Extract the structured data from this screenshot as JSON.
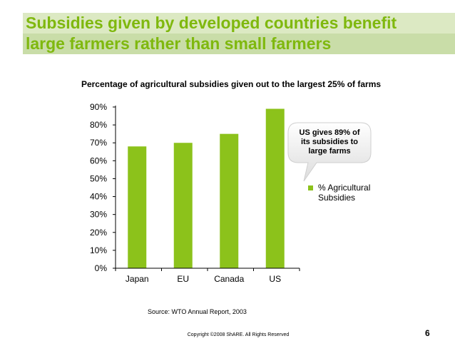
{
  "slide": {
    "title_line1": "Subsidies given by developed countries benefit",
    "title_line2": "large farmers rather than small farmers",
    "source": "Source: WTO Annual Report, 2003",
    "copyright": "Copyright ©2008 ShARE. All Rights Reserved",
    "page_number": "6",
    "accent_color": "#7fb80e"
  },
  "chart_data": {
    "type": "bar",
    "title": "Percentage of agricultural subsidies given out to the largest 25% of farms",
    "categories": [
      "Japan",
      "EU",
      "Canada",
      "US"
    ],
    "series": [
      {
        "name": "% Agricultural Subsidies",
        "values": [
          68,
          70,
          75,
          89
        ],
        "color": "#8cc21b"
      }
    ],
    "ylim": [
      0,
      90
    ],
    "yticks": [
      "0%",
      "10%",
      "20%",
      "30%",
      "40%",
      "50%",
      "60%",
      "70%",
      "80%",
      "90%"
    ],
    "ytick_values": [
      0,
      10,
      20,
      30,
      40,
      50,
      60,
      70,
      80,
      90
    ],
    "grid": false,
    "legend": "right",
    "legend_lines": [
      "% Agricultural",
      "Subsidies"
    ],
    "annotation": {
      "lines": [
        "US gives 89% of",
        "its subsidies to",
        "large farms"
      ],
      "target": "US"
    }
  }
}
